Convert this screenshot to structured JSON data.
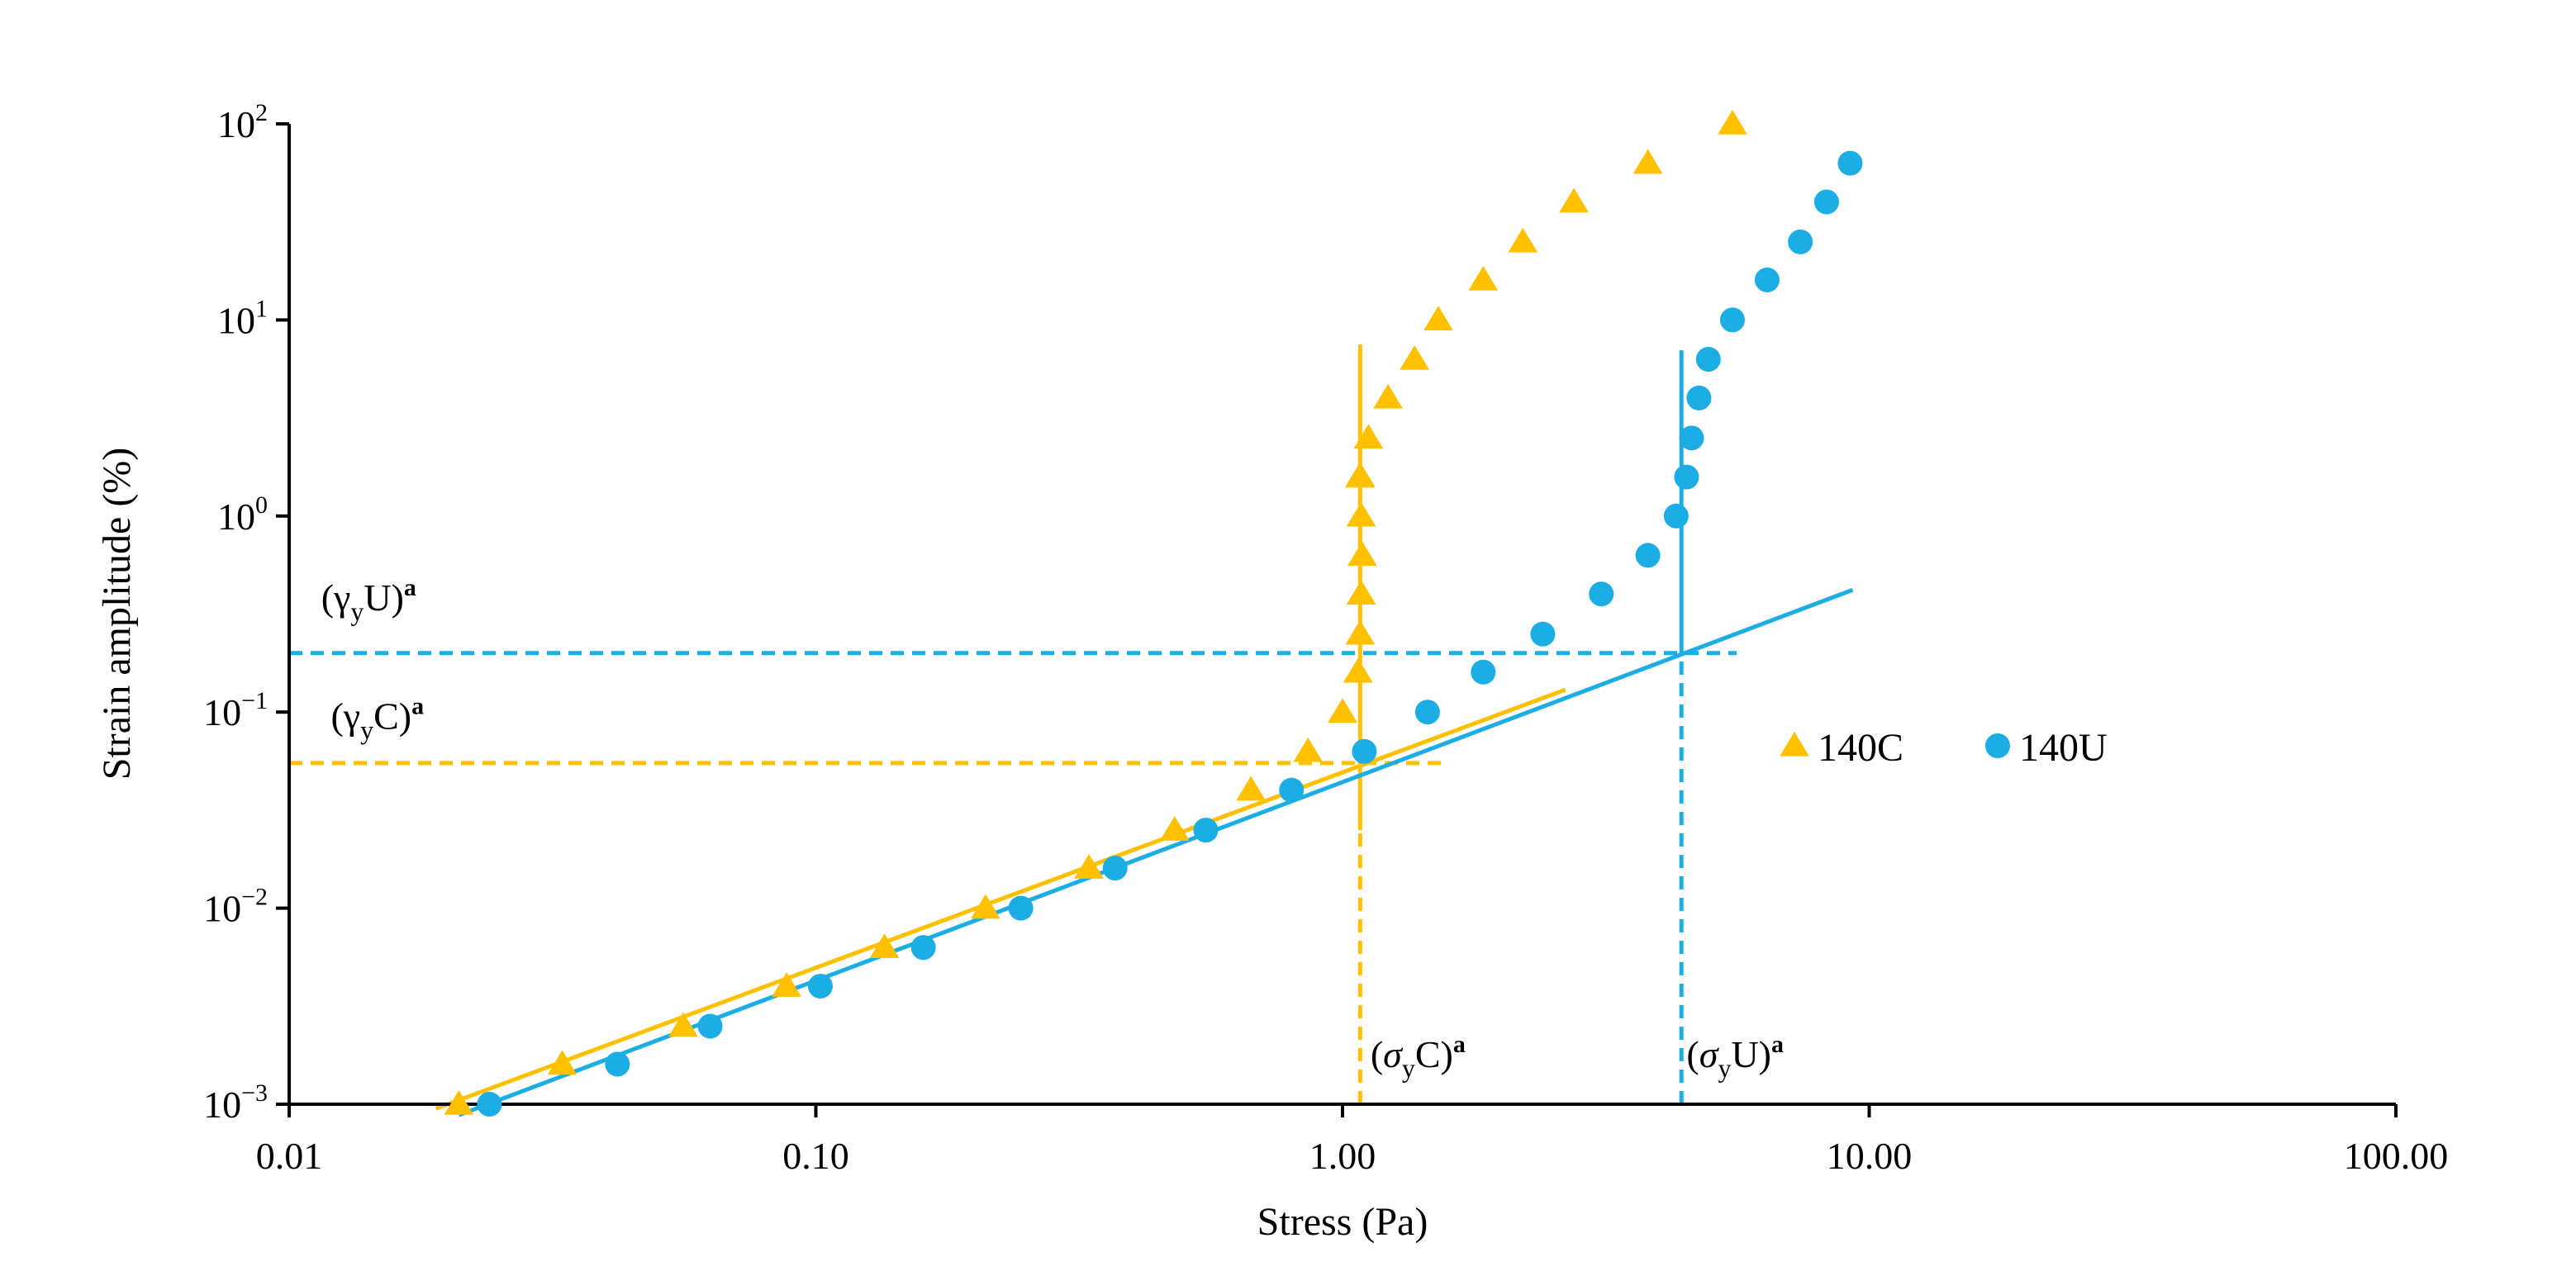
{
  "colors": {
    "series_c": "#FFC000",
    "series_u": "#1BADE4",
    "axis": "#000000"
  },
  "chart_data": {
    "type": "scatter",
    "title": "",
    "xlabel": "Stress (Pa)",
    "ylabel": "Strain amplitude  (%)",
    "xscale": "log",
    "yscale": "log",
    "xlim": [
      0.01,
      100
    ],
    "ylim": [
      0.001,
      100
    ],
    "x_ticks": [
      {
        "value": 0.01,
        "label": "0.01"
      },
      {
        "value": 0.1,
        "label": "0.10"
      },
      {
        "value": 1,
        "label": "1.00"
      },
      {
        "value": 10,
        "label": "10.00"
      },
      {
        "value": 100,
        "label": "100.00"
      }
    ],
    "y_ticks": [
      {
        "value": 0.001,
        "base": "10",
        "exp": "−3"
      },
      {
        "value": 0.01,
        "base": "10",
        "exp": "−2"
      },
      {
        "value": 0.1,
        "base": "10",
        "exp": "−1"
      },
      {
        "value": 1,
        "base": "10",
        "exp": "0"
      },
      {
        "value": 10,
        "base": "10",
        "exp": "1"
      },
      {
        "value": 100,
        "base": "10",
        "exp": "2"
      }
    ],
    "legend_position": "right",
    "series": [
      {
        "name": "140C",
        "marker": "triangle",
        "x": [
          0.021,
          0.033,
          0.056,
          0.088,
          0.135,
          0.21,
          0.33,
          0.48,
          0.67,
          0.86,
          1.0,
          1.07,
          1.08,
          1.085,
          1.09,
          1.085,
          1.08,
          1.08,
          1.12,
          1.22,
          1.37,
          1.52,
          1.85,
          2.2,
          2.75,
          3.8,
          5.5
        ],
        "y": [
          0.001,
          0.0016,
          0.0025,
          0.004,
          0.0063,
          0.01,
          0.016,
          0.025,
          0.04,
          0.063,
          0.1,
          0.16,
          0.25,
          0.4,
          0.63,
          1.0,
          1.58,
          1.6,
          2.5,
          4.0,
          6.3,
          10,
          16,
          25,
          40,
          63,
          100
        ]
      },
      {
        "name": "140U",
        "marker": "circle",
        "x": [
          0.024,
          0.042,
          0.063,
          0.102,
          0.16,
          0.245,
          0.37,
          0.55,
          0.8,
          1.1,
          1.45,
          1.85,
          2.4,
          3.1,
          3.8,
          4.3,
          4.5,
          4.6,
          4.75,
          4.95,
          5.5,
          6.4,
          7.4,
          8.3,
          9.2
        ],
        "y": [
          0.001,
          0.0016,
          0.0025,
          0.004,
          0.0063,
          0.01,
          0.016,
          0.025,
          0.04,
          0.063,
          0.1,
          0.16,
          0.25,
          0.4,
          0.63,
          1.0,
          1.58,
          2.5,
          4.0,
          6.3,
          10,
          16,
          25,
          40,
          63
        ]
      }
    ],
    "fit_lines": [
      {
        "series": "140C",
        "x": [
          0.019,
          2.65
        ],
        "y": [
          0.00095,
          0.13
        ]
      },
      {
        "series": "140U",
        "x": [
          0.021,
          9.3
        ],
        "y": [
          0.00088,
          0.42
        ]
      }
    ],
    "yield_lines": [
      {
        "series": "140U",
        "orientation": "horizontal",
        "style": "dashed",
        "value": 0.2,
        "from": 0.01,
        "to": 5.6
      },
      {
        "series": "140C",
        "orientation": "horizontal",
        "style": "dashed",
        "value": 0.055,
        "from": 0.01,
        "to": 1.55
      },
      {
        "series": "140C",
        "orientation": "vertical",
        "style": "solid",
        "value": 1.08,
        "from": 0.025,
        "to": 7.5
      },
      {
        "series": "140C",
        "orientation": "vertical",
        "style": "dashed",
        "value": 1.08,
        "from": 0.001,
        "to": 0.025
      },
      {
        "series": "140U",
        "orientation": "vertical",
        "style": "solid",
        "value": 4.4,
        "from": 0.2,
        "to": 7.0
      },
      {
        "series": "140U",
        "orientation": "vertical",
        "style": "dashed",
        "value": 4.4,
        "from": 0.001,
        "to": 0.2
      }
    ],
    "annotations": [
      {
        "name": "gamma-y-u",
        "open": "(",
        "symbol": "γ",
        "sub": "y",
        "rest": "U)",
        "sup": "a",
        "x": 0.0115,
        "y": 0.33,
        "italic": false
      },
      {
        "name": "gamma-y-c",
        "open": "(",
        "symbol": "γ",
        "sub": "y",
        "rest": "C)",
        "sup": "a",
        "x": 0.012,
        "y": 0.082,
        "italic": false
      },
      {
        "name": "sigma-y-c",
        "open": "(",
        "symbol": "σ",
        "sub": "y",
        "rest": "C)",
        "sup": "a",
        "x": 1.13,
        "y": 0.00155,
        "italic": true
      },
      {
        "name": "sigma-y-u",
        "open": "(",
        "symbol": "σ",
        "sub": "y",
        "rest": "U)",
        "sup": "a",
        "x": 4.5,
        "y": 0.00155,
        "italic": true
      }
    ],
    "legend": [
      {
        "name": "140C",
        "marker": "triangle"
      },
      {
        "name": "140U",
        "marker": "circle"
      }
    ]
  }
}
